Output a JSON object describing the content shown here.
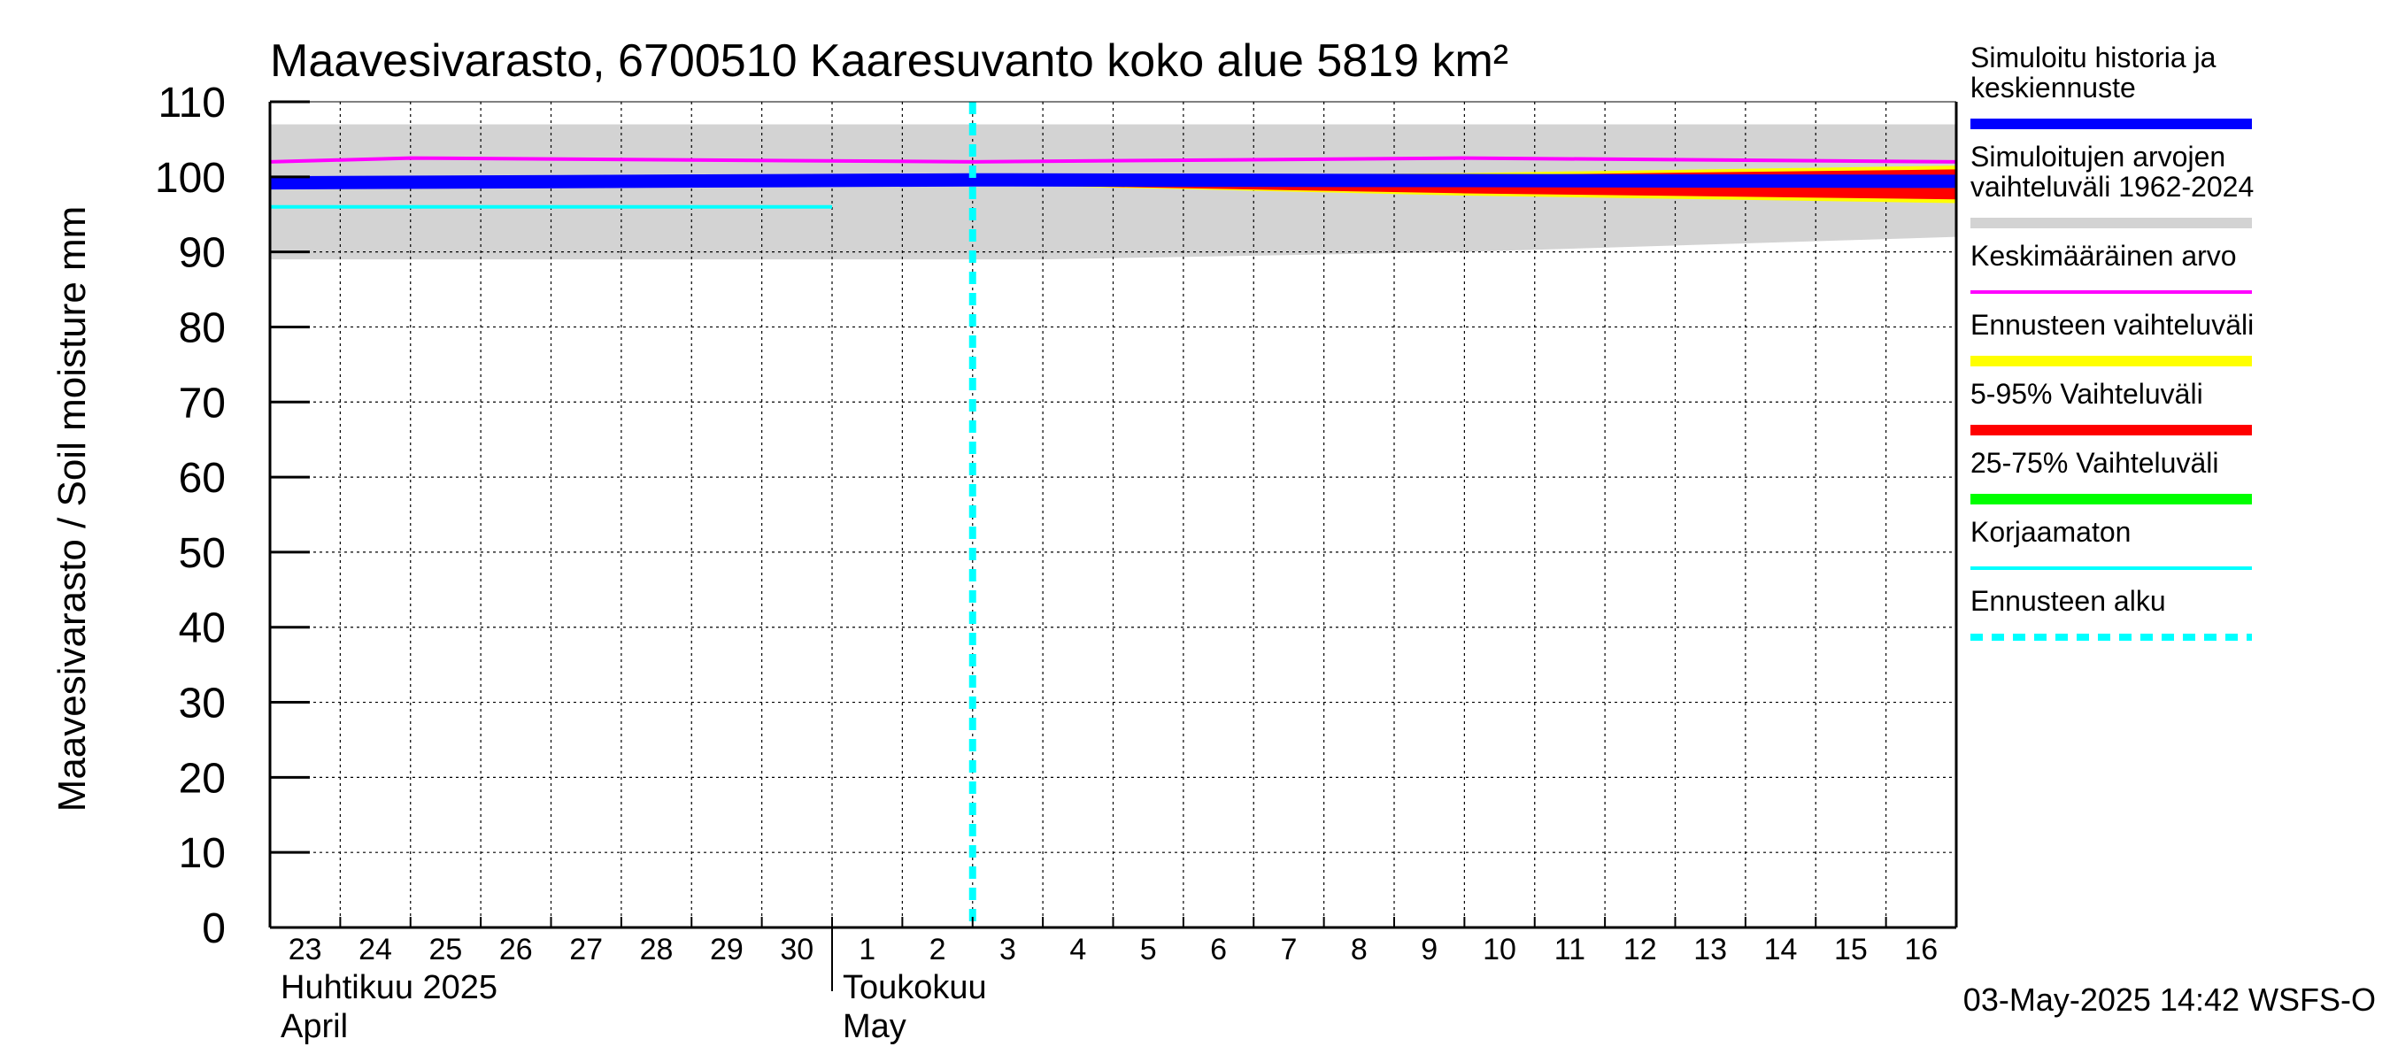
{
  "chart_data": {
    "type": "line",
    "title": "Maavesivarasto, 6700510 Kaaresuvanto koko alue 5819 km²",
    "ylabel": "Maavesivarasto / Soil moisture   mm",
    "ylim": [
      0,
      110
    ],
    "yticks": [
      0,
      10,
      20,
      30,
      40,
      50,
      60,
      70,
      80,
      90,
      100,
      110
    ],
    "xlim": [
      "2025-04-23",
      "2025-05-17"
    ],
    "x_tick_labels": [
      "23",
      "24",
      "25",
      "26",
      "27",
      "28",
      "29",
      "30",
      "1",
      "2",
      "3",
      "4",
      "5",
      "6",
      "7",
      "8",
      "9",
      "10",
      "11",
      "12",
      "13",
      "14",
      "15",
      "16"
    ],
    "month_labels": [
      {
        "fi": "Huhtikuu  2025",
        "en": "April",
        "start": "2025-04-23"
      },
      {
        "fi": "Toukokuu",
        "en": "May",
        "start": "2025-05-01"
      }
    ],
    "grid": true,
    "legend_position": "right",
    "forecast_start": "2025-05-03",
    "series": [
      {
        "name": "Simuloitu historia ja keskiennuste",
        "color": "#0000ff",
        "x": [
          "2025-04-23",
          "2025-05-03",
          "2025-05-10",
          "2025-05-17"
        ],
        "values": [
          99.2,
          99.6,
          99.5,
          99.4
        ]
      },
      {
        "name": "Simuloitujen arvojen vaihteluväli 1962-2024",
        "color": "#d3d3d3",
        "kind": "band",
        "x": [
          "2025-04-23",
          "2025-05-04",
          "2025-05-10",
          "2025-05-17"
        ],
        "lower": [
          89,
          89,
          90,
          92
        ],
        "upper": [
          107,
          107,
          107,
          107
        ]
      },
      {
        "name": "Keskimääräinen arvo",
        "color": "#ff00ff",
        "x": [
          "2025-04-23",
          "2025-04-25",
          "2025-05-03",
          "2025-05-10",
          "2025-05-17"
        ],
        "values": [
          102,
          102.5,
          102,
          102.5,
          102
        ]
      },
      {
        "name": "Ennusteen vaihteluväli",
        "color": "#ffff00",
        "kind": "band",
        "x": [
          "2025-05-03",
          "2025-05-10",
          "2025-05-17"
        ],
        "lower": [
          99,
          97.5,
          96.5
        ],
        "upper": [
          100,
          100.5,
          101.5
        ]
      },
      {
        "name": "5-95% Vaihteluväli",
        "color": "#ff0000",
        "kind": "band",
        "x": [
          "2025-05-03",
          "2025-05-10",
          "2025-05-17"
        ],
        "lower": [
          99,
          97.8,
          97
        ],
        "upper": [
          100,
          100.2,
          101
        ]
      },
      {
        "name": "25-75% Vaihteluväli",
        "color": "#00ff00",
        "kind": "band",
        "x": [
          "2025-05-03",
          "2025-05-10",
          "2025-05-17"
        ],
        "lower": [
          99.3,
          99,
          98.5
        ],
        "upper": [
          99.8,
          99.8,
          99.8
        ]
      },
      {
        "name": "Korjaamaton",
        "color": "#00ffff",
        "x": [
          "2025-04-23",
          "2025-05-01"
        ],
        "values": [
          96,
          96
        ]
      },
      {
        "name": "Ennusteen alku",
        "color": "#00ffff",
        "kind": "vline",
        "x": [
          "2025-05-03"
        ]
      }
    ],
    "legend": [
      {
        "label": "Simuloitu historia ja keskiennuste",
        "color": "#0000ff",
        "style": "thick"
      },
      {
        "label": "Simuloitujen arvojen vaihteluväli 1962-2024",
        "color": "#d3d3d3",
        "style": "thick"
      },
      {
        "label": "Keskimääräinen arvo",
        "color": "#ff00ff",
        "style": "thin"
      },
      {
        "label": "Ennusteen vaihteluväli",
        "color": "#ffff00",
        "style": "thick"
      },
      {
        "label": "5-95% Vaihteluväli",
        "color": "#ff0000",
        "style": "thick"
      },
      {
        "label": "25-75% Vaihteluväli",
        "color": "#00ff00",
        "style": "thick"
      },
      {
        "label": "Korjaamaton",
        "color": "#00ffff",
        "style": "thin"
      },
      {
        "label": "Ennusteen alku",
        "color": "#00ffff",
        "style": "dashed"
      }
    ],
    "footer": "03-May-2025 14:42 WSFS-O"
  }
}
